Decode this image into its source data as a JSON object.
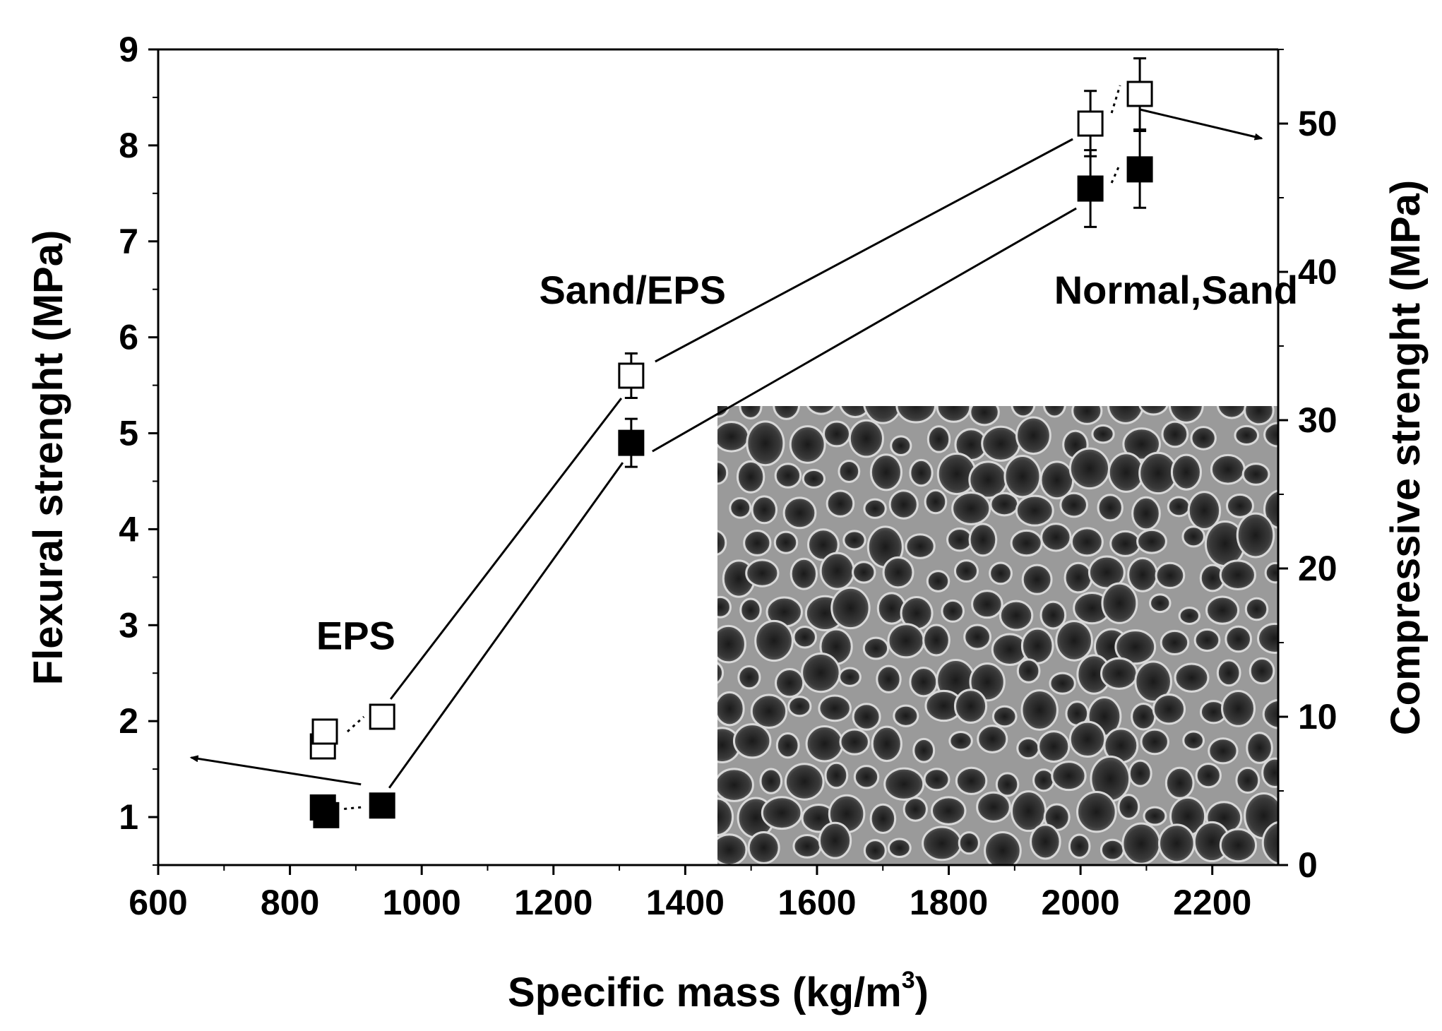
{
  "chart_data": {
    "type": "scatter",
    "title": "",
    "xlabel": "Specific mass (kg/m",
    "xlabel_sup": "3",
    "xlabel_end": ")",
    "ylabel": "Flexural strenght (MPa)",
    "y2label": "Compressive strenght (MPa)",
    "xlim": [
      600,
      2300
    ],
    "ylim": [
      0.5,
      9
    ],
    "y2lim": [
      0,
      55
    ],
    "x_ticks": [
      600,
      800,
      1000,
      1200,
      1400,
      1600,
      1800,
      2000,
      2200
    ],
    "y_ticks": [
      1,
      2,
      3,
      4,
      5,
      6,
      7,
      8,
      9
    ],
    "y2_ticks": [
      0,
      10,
      20,
      30,
      40,
      50
    ],
    "grid": false,
    "series": [
      {
        "axis": "left",
        "marker": "filled-square",
        "points": [
          {
            "x": 850,
            "y": 1.1,
            "err": 0.1
          },
          {
            "x": 855,
            "y": 1.02,
            "err": 0.08
          },
          {
            "x": 940,
            "y": 1.12,
            "err": 0.08
          },
          {
            "x": 1318,
            "y": 4.9,
            "err": 0.25
          },
          {
            "x": 2015,
            "y": 7.55,
            "err": 0.4
          },
          {
            "x": 2090,
            "y": 7.75,
            "err": 0.4
          }
        ]
      },
      {
        "axis": "right",
        "marker": "open-square",
        "points": [
          {
            "x": 850,
            "y": 8.0,
            "err": 0.8
          },
          {
            "x": 853,
            "y": 9.0,
            "err": 0.7
          },
          {
            "x": 940,
            "y": 10.0,
            "err": 0.7
          },
          {
            "x": 1318,
            "y": 33.0,
            "err": 1.5
          },
          {
            "x": 2015,
            "y": 50.0,
            "err": 2.2
          },
          {
            "x": 2090,
            "y": 52.0,
            "err": 2.4
          }
        ]
      }
    ],
    "annotations": [
      {
        "text": "EPS",
        "x": 900,
        "y": 2.75
      },
      {
        "text": "Sand/EPS",
        "x": 1320,
        "y": 6.35
      },
      {
        "text": "Normal,Sand",
        "x": 2145,
        "y": 6.35
      }
    ],
    "inset": "SEM micrograph of porous cellular structure"
  }
}
